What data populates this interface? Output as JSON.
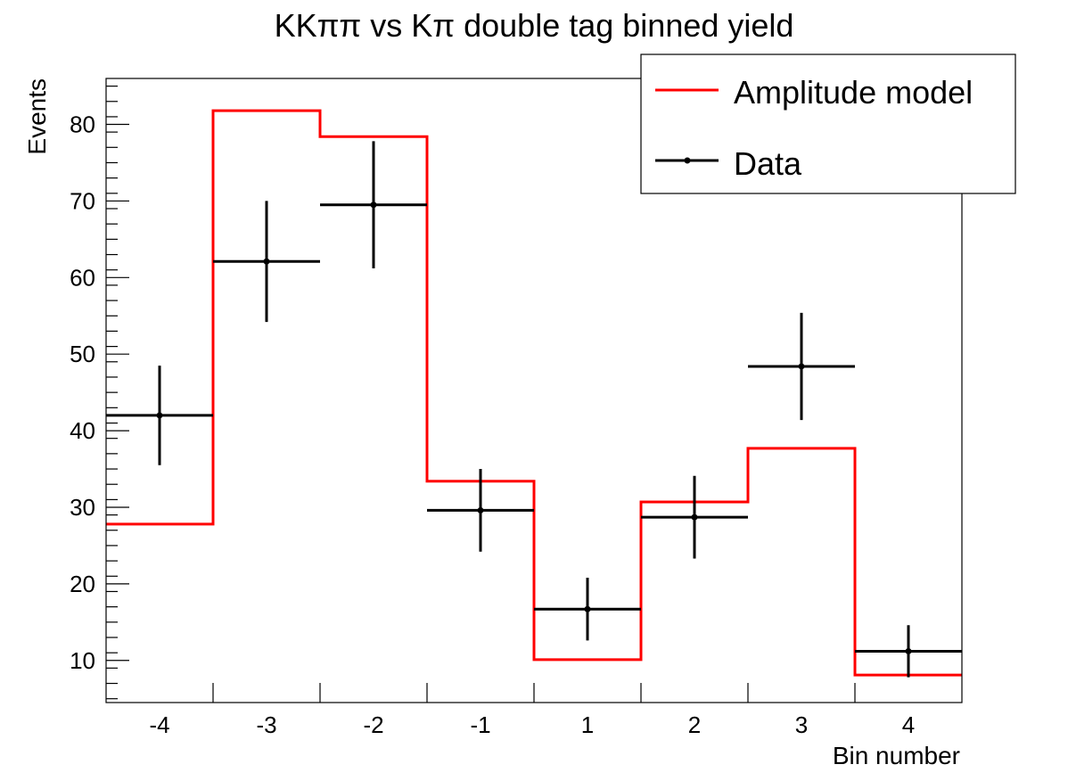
{
  "chart_data": {
    "type": "histogram",
    "title": "KKππ vs Kπ double tag binned yield",
    "xlabel": "Bin number",
    "ylabel": "Events",
    "categories": [
      "-4",
      "-3",
      "-2",
      "-1",
      "1",
      "2",
      "3",
      "4"
    ],
    "ylim": [
      4.5,
      86
    ],
    "yticks": [
      10,
      20,
      30,
      40,
      50,
      60,
      70,
      80
    ],
    "grid": false,
    "legend": {
      "position": "top-right",
      "entries": [
        "Amplitude model",
        "Data"
      ]
    },
    "series": [
      {
        "name": "Amplitude model",
        "style": "step",
        "color": "#ff0000",
        "values": [
          27.8,
          81.8,
          78.4,
          33.4,
          10.1,
          30.7,
          37.7,
          8.1
        ]
      },
      {
        "name": "Data",
        "style": "points-with-errors",
        "color": "#000000",
        "values": [
          42.0,
          62.1,
          69.5,
          29.6,
          16.7,
          28.7,
          48.4,
          11.2
        ],
        "errors": [
          6.5,
          7.9,
          8.3,
          5.4,
          4.1,
          5.4,
          7.0,
          3.4
        ]
      }
    ]
  }
}
